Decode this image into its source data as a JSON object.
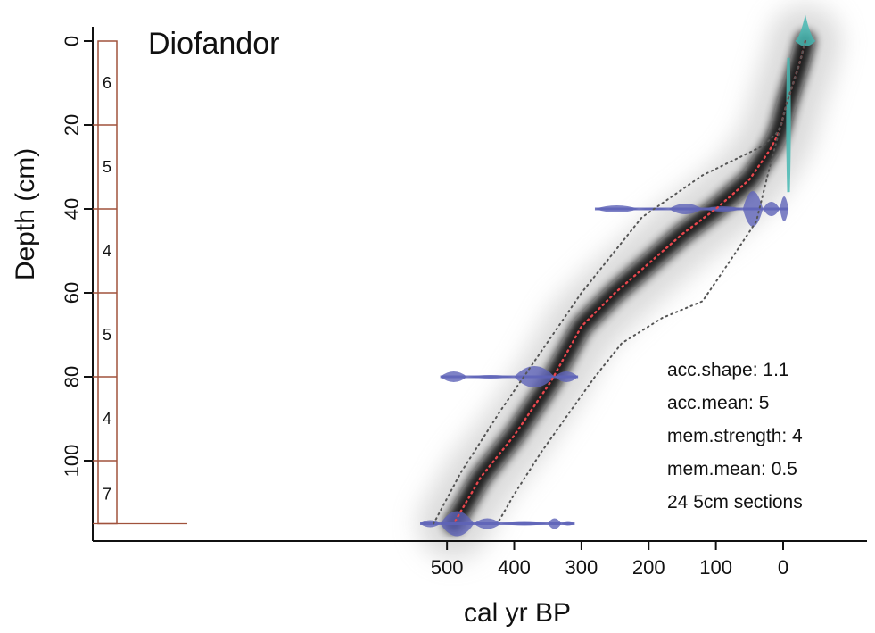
{
  "chart_data": {
    "type": "line",
    "title": "Diofandor",
    "xlabel": "cal yr BP",
    "ylabel": "Depth (cm)",
    "x_axis_reversed": true,
    "y_axis_reversed": true,
    "xlim": [
      550,
      -30
    ],
    "ylim": [
      0,
      115
    ],
    "x_ticks": [
      500,
      400,
      300,
      200,
      100,
      0
    ],
    "y_ticks": [
      0,
      20,
      40,
      60,
      80,
      100
    ],
    "grid": false,
    "series": [
      {
        "style": "dotted-red",
        "x": [
          -33,
          -25,
          -15,
          -5,
          3,
          10,
          20,
          50,
          100,
          150,
          200,
          250,
          300,
          345,
          400,
          450,
          490
        ],
        "y": [
          0,
          5,
          10,
          15,
          20,
          23,
          26,
          33,
          40,
          46,
          53,
          60,
          68,
          81,
          94,
          104,
          115
        ]
      },
      {
        "style": "dotted-grey",
        "x": [
          -33,
          -25,
          -15,
          -5,
          3,
          10,
          30,
          120,
          210,
          300,
          360,
          420,
          480,
          520
        ],
        "y": [
          0,
          5,
          10,
          15,
          20,
          22,
          25,
          32,
          42,
          60,
          74,
          88,
          103,
          115
        ]
      },
      {
        "style": "dotted-grey",
        "x": [
          -33,
          -25,
          -15,
          -5,
          3,
          10,
          20,
          40,
          90,
          120,
          180,
          240,
          280,
          320,
          360,
          400,
          425
        ],
        "y": [
          0,
          5,
          10,
          15,
          20,
          24,
          30,
          43,
          55,
          62,
          66,
          72,
          80,
          89,
          98,
          108,
          115
        ]
      }
    ],
    "dated_depths": [
      {
        "depth": 0,
        "type": "cyan"
      },
      {
        "depth": 18,
        "type": "cyan"
      },
      {
        "depth": 40,
        "type": "blue"
      },
      {
        "depth": 80,
        "type": "blue"
      },
      {
        "depth": 115,
        "type": "blue"
      }
    ],
    "section_boundaries": [
      0,
      20,
      40,
      60,
      80,
      100,
      115
    ],
    "section_labels": [
      {
        "text": "6",
        "depth": 10
      },
      {
        "text": "5",
        "depth": 30
      },
      {
        "text": "4",
        "depth": 50
      },
      {
        "text": "5",
        "depth": 70
      },
      {
        "text": "4",
        "depth": 90
      },
      {
        "text": "7",
        "depth": 108
      }
    ],
    "annotations": [
      "acc.shape: 1.1",
      "acc.mean: 5",
      "mem.strength: 4",
      "mem.mean: 0.5",
      "24 5cm sections"
    ],
    "colors": {
      "model_median": "#e8474d",
      "confidence": "#555555",
      "calibrated_dates": "#5e63b8",
      "surface_dates": "#48b9b3",
      "section_box": "#a0523c",
      "uncertainty_cloud": "#111111"
    }
  }
}
